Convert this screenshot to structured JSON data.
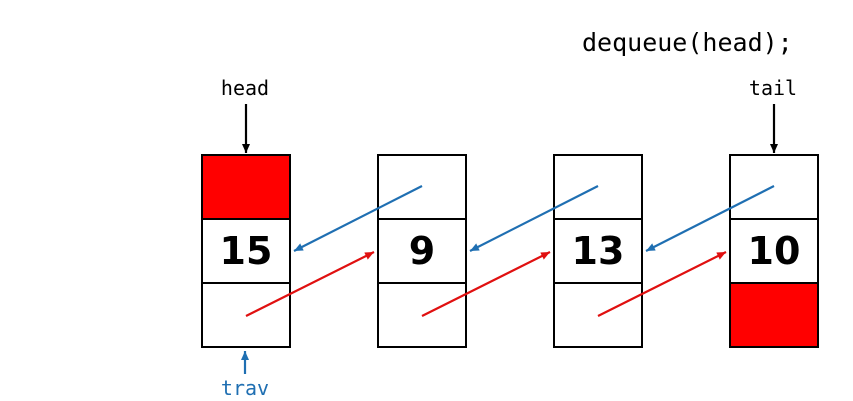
{
  "code": {
    "statement": "dequeue(head);"
  },
  "pointers": {
    "head": {
      "label": "head",
      "color": "#000000"
    },
    "tail": {
      "label": "tail",
      "color": "#000000"
    },
    "trav": {
      "label": "trav",
      "color": "#1f6fb2"
    }
  },
  "nodes": [
    {
      "value": "15",
      "prev_null": true,
      "next_null": false
    },
    {
      "value": "9",
      "prev_null": false,
      "next_null": false
    },
    {
      "value": "13",
      "prev_null": false,
      "next_null": false
    },
    {
      "value": "10",
      "prev_null": false,
      "next_null": true
    }
  ],
  "colors": {
    "null_fill": "#ff0000",
    "next_arrow": "#e01010",
    "prev_arrow": "#1f6fb2",
    "border": "#000000"
  }
}
